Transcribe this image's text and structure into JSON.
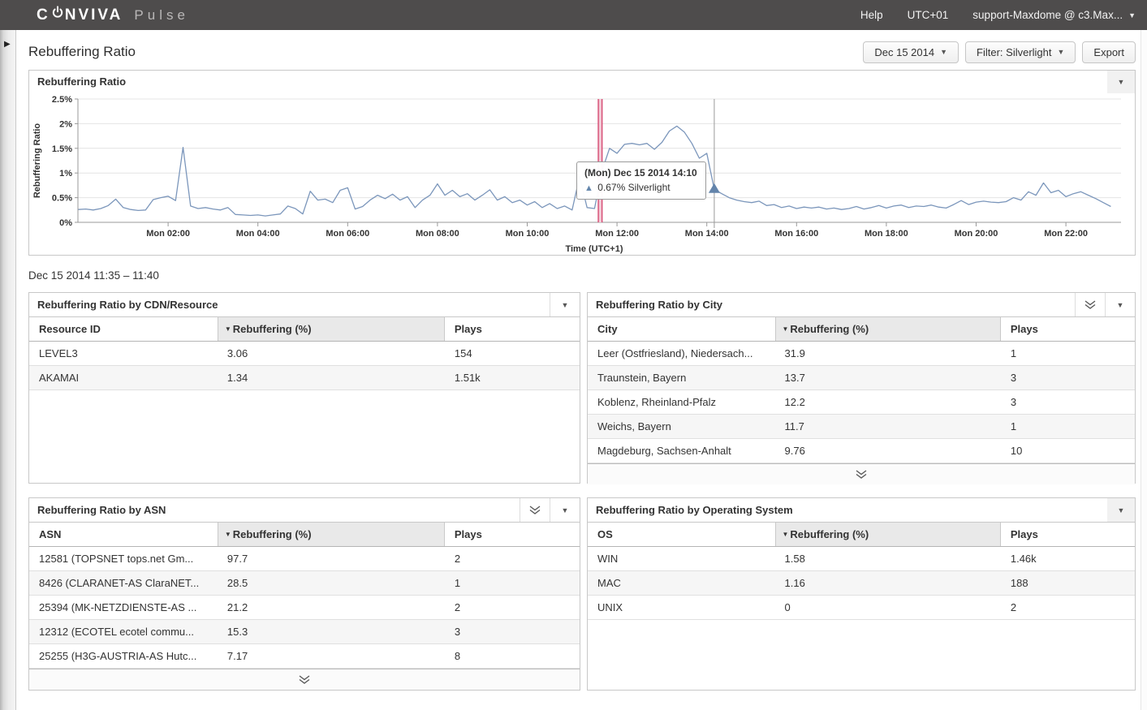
{
  "topbar": {
    "logo_c": "C",
    "logo_rest": "NVIVA",
    "product": "Pulse",
    "help": "Help",
    "timezone": "UTC+01",
    "account": "support-Maxdome @ c3.Max..."
  },
  "toolbar": {
    "page_title": "Rebuffering Ratio",
    "date_button": "Dec 15 2014",
    "filter_button": "Filter: Silverlight",
    "export_button": "Export"
  },
  "selection_label": "Dec 15 2014 11:35 – 11:40",
  "chart_data": {
    "type": "line",
    "title": "Rebuffering Ratio",
    "xlabel": "Time (UTC+1)",
    "ylabel": "Rebuffering Ratio",
    "series_name": "Silverlight",
    "line_color": "#7b96bb",
    "marker_color": "#6384ab",
    "ylim": [
      0,
      2.5
    ],
    "y_tick_values": [
      0,
      0.5,
      1,
      1.5,
      2,
      2.5
    ],
    "y_tick_labels": [
      "0%",
      "0.5%",
      "1%",
      "1.5%",
      "2%",
      "2.5%"
    ],
    "x_tick_minutes": [
      120,
      240,
      360,
      480,
      600,
      720,
      840,
      960,
      1080,
      1200,
      1320
    ],
    "x_tick_labels": [
      "Mon 02:00",
      "Mon 04:00",
      "Mon 06:00",
      "Mon 08:00",
      "Mon 10:00",
      "Mon 12:00",
      "Mon 14:00",
      "Mon 16:00",
      "Mon 18:00",
      "Mon 20:00",
      "Mon 22:00"
    ],
    "x_start_minutes": 0,
    "x_step_minutes": 10,
    "values": [
      0.26,
      0.27,
      0.25,
      0.28,
      0.34,
      0.47,
      0.3,
      0.26,
      0.24,
      0.25,
      0.46,
      0.5,
      0.53,
      0.44,
      1.52,
      0.33,
      0.28,
      0.3,
      0.27,
      0.25,
      0.3,
      0.16,
      0.15,
      0.14,
      0.15,
      0.13,
      0.15,
      0.17,
      0.33,
      0.28,
      0.17,
      0.63,
      0.45,
      0.47,
      0.4,
      0.65,
      0.7,
      0.27,
      0.32,
      0.45,
      0.55,
      0.48,
      0.57,
      0.45,
      0.52,
      0.3,
      0.45,
      0.55,
      0.78,
      0.55,
      0.65,
      0.52,
      0.58,
      0.45,
      0.55,
      0.66,
      0.45,
      0.52,
      0.4,
      0.45,
      0.35,
      0.42,
      0.3,
      0.38,
      0.28,
      0.33,
      0.25,
      0.93,
      0.3,
      0.28,
      1.05,
      1.5,
      1.4,
      1.58,
      1.6,
      1.57,
      1.6,
      1.48,
      1.62,
      1.85,
      1.95,
      1.83,
      1.6,
      1.3,
      1.4,
      0.67,
      0.58,
      0.5,
      0.45,
      0.42,
      0.4,
      0.43,
      0.34,
      0.36,
      0.3,
      0.33,
      0.28,
      0.31,
      0.29,
      0.31,
      0.27,
      0.29,
      0.26,
      0.28,
      0.32,
      0.27,
      0.3,
      0.34,
      0.29,
      0.33,
      0.35,
      0.3,
      0.33,
      0.32,
      0.35,
      0.31,
      0.29,
      0.36,
      0.44,
      0.36,
      0.41,
      0.43,
      0.41,
      0.4,
      0.42,
      0.5,
      0.45,
      0.62,
      0.55,
      0.8,
      0.6,
      0.65,
      0.52,
      0.58,
      0.62,
      0.55,
      0.48,
      0.4,
      0.32
    ],
    "selection_band_minutes": [
      695,
      700
    ],
    "band_fill": "#f2cbd7",
    "band_edge": "#d64a72",
    "crosshair_minutes": 850,
    "marker": {
      "minutes": 850,
      "value": 0.67
    },
    "tooltip": {
      "title": "(Mon) Dec 15 2014 14:10",
      "value_line": "0.67% Silverlight"
    },
    "grid": true,
    "legend": "none"
  },
  "tables": [
    {
      "title": "Rebuffering Ratio by CDN/Resource",
      "has_expand": false,
      "has_footer": false,
      "corner_gray": false,
      "columns": [
        "Resource ID",
        "Rebuffering (%)",
        "Plays"
      ],
      "sorted_column": 1,
      "rows": [
        [
          "LEVEL3",
          "3.06",
          "154"
        ],
        [
          "AKAMAI",
          "1.34",
          "1.51k"
        ]
      ]
    },
    {
      "title": "Rebuffering Ratio by City",
      "has_expand": true,
      "has_footer": true,
      "corner_gray": false,
      "columns": [
        "City",
        "Rebuffering (%)",
        "Plays"
      ],
      "sorted_column": 1,
      "rows": [
        [
          "Leer (Ostfriesland), Niedersach...",
          "31.9",
          "1"
        ],
        [
          "Traunstein, Bayern",
          "13.7",
          "3"
        ],
        [
          "Koblenz, Rheinland-Pfalz",
          "12.2",
          "3"
        ],
        [
          "Weichs, Bayern",
          "11.7",
          "1"
        ],
        [
          "Magdeburg, Sachsen-Anhalt",
          "9.76",
          "10"
        ]
      ]
    },
    {
      "title": "Rebuffering Ratio by ASN",
      "has_expand": true,
      "has_footer": true,
      "corner_gray": false,
      "columns": [
        "ASN",
        "Rebuffering (%)",
        "Plays"
      ],
      "sorted_column": 1,
      "rows": [
        [
          "12581 (TOPSNET tops.net Gm...",
          "97.7",
          "2"
        ],
        [
          "8426 (CLARANET-AS ClaraNET...",
          "28.5",
          "1"
        ],
        [
          "25394 (MK-NETZDIENSTE-AS ...",
          "21.2",
          "2"
        ],
        [
          "12312 (ECOTEL ecotel commu...",
          "15.3",
          "3"
        ],
        [
          "25255 (H3G-AUSTRIA-AS Hutc...",
          "7.17",
          "8"
        ]
      ]
    },
    {
      "title": "Rebuffering Ratio by Operating System",
      "has_expand": false,
      "has_footer": false,
      "corner_gray": true,
      "columns": [
        "OS",
        "Rebuffering (%)",
        "Plays"
      ],
      "sorted_column": 1,
      "rows": [
        [
          "WIN",
          "1.58",
          "1.46k"
        ],
        [
          "MAC",
          "1.16",
          "188"
        ],
        [
          "UNIX",
          "0",
          "2"
        ]
      ]
    }
  ]
}
